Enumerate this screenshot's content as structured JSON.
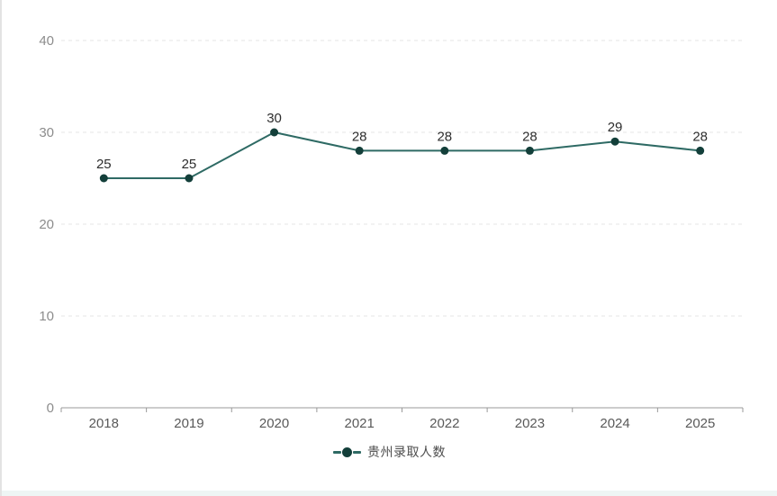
{
  "chart_data": {
    "type": "line",
    "title": "",
    "categories": [
      "2018",
      "2019",
      "2020",
      "2021",
      "2022",
      "2023",
      "2024",
      "2025"
    ],
    "series": [
      {
        "name": "贵州录取人数",
        "values": [
          25,
          25,
          30,
          28,
          28,
          28,
          29,
          28
        ]
      }
    ],
    "xlabel": "",
    "ylabel": "",
    "ylim": [
      0,
      40
    ],
    "yticks": [
      0,
      10,
      20,
      30,
      40
    ],
    "grid": "horizontal-dashed",
    "point_labels_visible": true,
    "legend_position": "bottom-center"
  },
  "style": {
    "line_color": "#2e6a64",
    "point_color": "#133f3a",
    "point_label_color": "#2d2d2d",
    "axis_line_color": "#999999",
    "grid_line_color": "#e4e4e4",
    "y_tick_label_color": "#8c8c8c",
    "x_tick_label_color": "#595959",
    "legend_text_color": "#4d4d4d",
    "background_color": "#ffffff"
  }
}
